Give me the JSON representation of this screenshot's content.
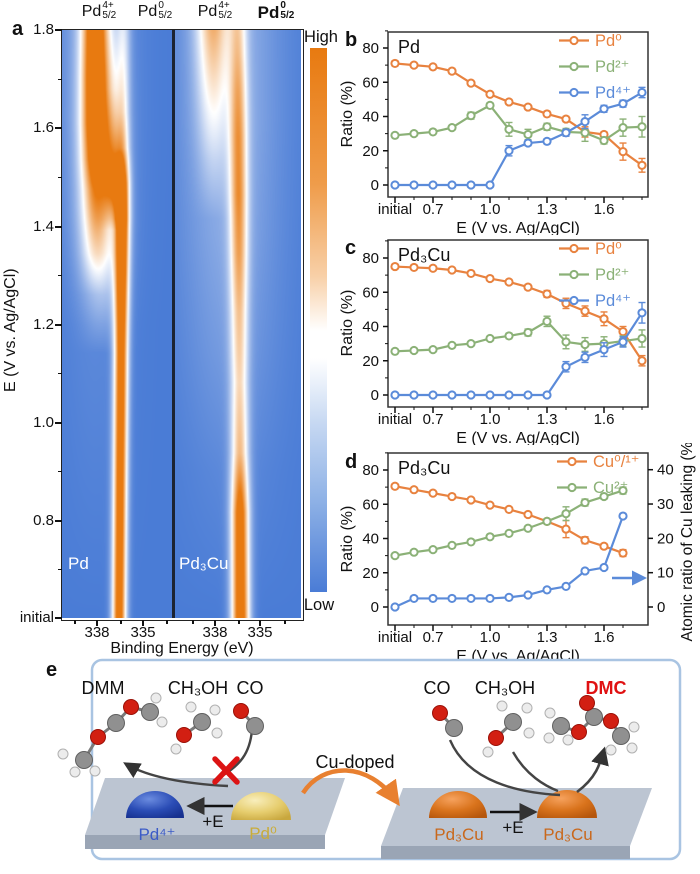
{
  "panel_a": {
    "label": "a",
    "top_labels": [
      {
        "base": "Pd",
        "sup": "4+",
        "sub": "5/2",
        "bold": false
      },
      {
        "base": "Pd",
        "sup": "0",
        "sub": "5/2",
        "bold": false
      },
      {
        "base": "Pd",
        "sup": "4+",
        "sub": "5/2",
        "bold": false
      },
      {
        "base": "Pd",
        "sup": "0",
        "sub": "5/2",
        "bold": true
      }
    ],
    "ylabel": "E (V vs. Ag/AgCl)",
    "yticks": [
      "1.8",
      "1.6",
      "1.4",
      "1.2",
      "1.0",
      "0.8",
      "initial"
    ],
    "xlabel": "Binding Energy (eV)",
    "xticks": [
      "338",
      "335",
      "338",
      "335"
    ],
    "colorbar_high": "High",
    "colorbar_low": "Low",
    "sample_labels": [
      "Pd",
      "Pd₃Cu"
    ],
    "colormap": {
      "low": "#4a7cd6",
      "mid": "#ffffff",
      "high": "#e87a10"
    },
    "heatmaps": [
      {
        "name": "Pd",
        "bands": [
          {
            "c0": 0.52,
            "c1": 0.56,
            "s": 0.045,
            "p": [
              [
                0,
                1.15
              ],
              [
                0.5,
                1.15
              ],
              [
                0.6,
                1.2
              ],
              [
                0.68,
                1.25
              ],
              [
                0.74,
                1.05
              ],
              [
                0.8,
                0.55
              ],
              [
                0.86,
                0.4
              ],
              [
                0.93,
                0.35
              ],
              [
                1,
                0.3
              ]
            ]
          },
          {
            "c0": 0.3,
            "c1": 0.3,
            "s": 0.085,
            "p": [
              [
                0,
                0
              ],
              [
                0.55,
                0
              ],
              [
                0.62,
                0.2
              ],
              [
                0.68,
                0.35
              ],
              [
                0.73,
                0.55
              ],
              [
                0.78,
                0.85
              ],
              [
                0.84,
                1.05
              ],
              [
                0.92,
                1.15
              ],
              [
                1,
                1.15
              ]
            ]
          },
          {
            "c0": 0.36,
            "c1": 0.36,
            "s": 0.13,
            "p": [
              [
                0,
                0
              ],
              [
                0.45,
                0
              ],
              [
                0.55,
                0.2
              ],
              [
                0.62,
                0.35
              ],
              [
                0.68,
                0.4
              ],
              [
                0.72,
                0.35
              ],
              [
                0.78,
                0.25
              ],
              [
                1,
                0
              ]
            ]
          },
          {
            "c0": 0.46,
            "c1": 0.46,
            "s": 0.06,
            "p": [
              [
                0,
                0
              ],
              [
                0.66,
                0
              ],
              [
                0.72,
                0.45
              ],
              [
                0.78,
                0.5
              ],
              [
                0.84,
                0.3
              ],
              [
                0.9,
                0.15
              ],
              [
                1,
                0.05
              ]
            ]
          },
          {
            "c0": 0.3,
            "c1": 0.3,
            "s": 0.22,
            "p": [
              [
                0,
                0
              ],
              [
                0.5,
                0.05
              ],
              [
                0.7,
                0.15
              ],
              [
                0.85,
                0.2
              ],
              [
                1,
                0.2
              ]
            ]
          }
        ]
      },
      {
        "name": "Pd₃Cu",
        "bands": [
          {
            "c0": 0.52,
            "c1": 0.5,
            "s": 0.05,
            "p": [
              [
                0,
                1.2
              ],
              [
                0.18,
                1.1
              ],
              [
                0.28,
                0.7
              ],
              [
                0.4,
                0.55
              ],
              [
                0.52,
                0.6
              ],
              [
                0.62,
                0.7
              ],
              [
                0.72,
                0.75
              ],
              [
                0.82,
                0.7
              ],
              [
                0.9,
                0.6
              ],
              [
                0.96,
                0.5
              ],
              [
                1,
                0.45
              ]
            ]
          },
          {
            "c0": 0.3,
            "c1": 0.3,
            "s": 0.09,
            "p": [
              [
                0,
                0
              ],
              [
                0.68,
                0
              ],
              [
                0.78,
                0.15
              ],
              [
                0.86,
                0.3
              ],
              [
                0.93,
                0.45
              ],
              [
                1,
                0.6
              ]
            ]
          },
          {
            "c0": 0.45,
            "c1": 0.42,
            "s": 0.28,
            "p": [
              [
                0,
                0
              ],
              [
                0.25,
                0.05
              ],
              [
                0.45,
                0.12
              ],
              [
                0.65,
                0.18
              ],
              [
                0.85,
                0.22
              ],
              [
                1,
                0.22
              ]
            ]
          }
        ]
      }
    ]
  },
  "chart_data": [
    {
      "id": "b",
      "type": "line",
      "panel_label": "b",
      "title": "Pd",
      "x_categories": [
        "initial",
        "0.6",
        "0.7",
        "0.8",
        "0.9",
        "1.0",
        "1.1",
        "1.2",
        "1.3",
        "1.4",
        "1.5",
        "1.6",
        "1.7",
        "1.8"
      ],
      "xtick_labels": [
        "initial",
        "0.7",
        "1.0",
        "1.3",
        "1.6"
      ],
      "xtick_indices": [
        0,
        2,
        5,
        8,
        11
      ],
      "xlabel": "E (V vs. Ag/AgCl)",
      "ylabel": "Ratio (%)",
      "ylim": [
        0,
        80
      ],
      "yticks": [
        0,
        20,
        40,
        60,
        80
      ],
      "series": [
        {
          "name": "Pd⁰",
          "color": "#E8823F",
          "values": [
            71,
            70,
            69,
            66.5,
            59.5,
            53,
            48.5,
            45.5,
            41.5,
            38.5,
            31,
            29.5,
            19.5,
            11.5
          ],
          "err": [
            1.5,
            0,
            0,
            1.5,
            0,
            0,
            0,
            0,
            1.5,
            1.5,
            3,
            1.5,
            5,
            4
          ]
        },
        {
          "name": "Pd²⁺",
          "color": "#8BB177",
          "values": [
            29,
            30,
            31,
            33.5,
            40.5,
            46.5,
            32.5,
            29.5,
            34,
            31,
            30.5,
            26,
            33.5,
            34
          ],
          "err": [
            0,
            0,
            0,
            0,
            2,
            1.5,
            4,
            3,
            2,
            2,
            5,
            2,
            5,
            6
          ]
        },
        {
          "name": "Pd⁴⁺",
          "color": "#5B8BD9",
          "values": [
            0,
            0,
            0,
            0,
            0,
            0,
            20,
            24.5,
            25.5,
            30.5,
            37,
            44.5,
            47.5,
            54
          ],
          "err": [
            0,
            0,
            0,
            0,
            0,
            0,
            3,
            1.5,
            1.5,
            2,
            4,
            2,
            2,
            3
          ]
        }
      ]
    },
    {
      "id": "c",
      "type": "line",
      "panel_label": "c",
      "title": "Pd₃Cu",
      "x_categories": [
        "initial",
        "0.6",
        "0.7",
        "0.8",
        "0.9",
        "1.0",
        "1.1",
        "1.2",
        "1.3",
        "1.4",
        "1.5",
        "1.6",
        "1.7",
        "1.8"
      ],
      "xtick_labels": [
        "initial",
        "0.7",
        "1.0",
        "1.3",
        "1.6"
      ],
      "xtick_indices": [
        0,
        2,
        5,
        8,
        11
      ],
      "xlabel": "E (V vs. Ag/AgCl)",
      "ylabel": "Ratio (%)",
      "ylim": [
        0,
        80
      ],
      "yticks": [
        0,
        20,
        40,
        60,
        80
      ],
      "series": [
        {
          "name": "Pd⁰",
          "color": "#E8823F",
          "values": [
            75,
            74.5,
            74,
            73,
            71,
            68,
            66,
            63,
            59,
            53.5,
            49,
            44.5,
            37,
            20
          ],
          "err": [
            1,
            0,
            0,
            0,
            0,
            1,
            1,
            1.5,
            2,
            3,
            3,
            4,
            3,
            3
          ]
        },
        {
          "name": "Pd²⁺",
          "color": "#8BB177",
          "values": [
            25.5,
            26,
            26.5,
            29,
            30,
            33,
            34.5,
            36.5,
            43,
            31,
            29.5,
            30,
            31.5,
            33
          ],
          "err": [
            0,
            0,
            0,
            0,
            0,
            0,
            1.5,
            2,
            3,
            4,
            4,
            4,
            3,
            5
          ]
        },
        {
          "name": "Pd⁴⁺",
          "color": "#5B8BD9",
          "values": [
            0,
            0,
            0,
            0,
            0,
            0,
            0,
            0,
            0,
            16.5,
            22,
            26.5,
            31,
            48
          ],
          "err": [
            0,
            0,
            0,
            0,
            0,
            0,
            0,
            0,
            0,
            3,
            3,
            4,
            3,
            6
          ]
        }
      ]
    },
    {
      "id": "d",
      "type": "line",
      "panel_label": "d",
      "title": "Pd₃Cu",
      "x_categories": [
        "initial",
        "0.6",
        "0.7",
        "0.8",
        "0.9",
        "1.0",
        "1.1",
        "1.2",
        "1.3",
        "1.4",
        "1.5",
        "1.6",
        "1.7"
      ],
      "xtick_labels": [
        "initial",
        "0.7",
        "1.0",
        "1.3",
        "1.6"
      ],
      "xtick_indices": [
        0,
        2,
        5,
        8,
        11
      ],
      "xlabel": "E (V vs. Ag/AgCl)",
      "ylabel": "Ratio (%)",
      "ylabel_right": "Atomic ratio of Cu leaking (%)",
      "ylim": [
        0,
        80
      ],
      "yticks": [
        0,
        20,
        40,
        60,
        80
      ],
      "ylim_right": [
        0,
        40
      ],
      "yticks_right": [
        0,
        10,
        20,
        30,
        40
      ],
      "series": [
        {
          "name": "Cu⁰/¹⁺",
          "color": "#E8823F",
          "values": [
            70.5,
            68.5,
            66.5,
            64.5,
            62.5,
            59.5,
            57,
            54,
            50,
            45.5,
            39,
            35.5,
            31.5
          ],
          "err": [
            1.5,
            0,
            0,
            0,
            0,
            0,
            0,
            0,
            0,
            5,
            2,
            1.5,
            2
          ]
        },
        {
          "name": "Cu²⁺",
          "color": "#8BB177",
          "values": [
            30,
            32,
            33.5,
            36,
            38,
            41,
            43,
            46,
            50,
            54.5,
            61,
            64.5,
            68
          ],
          "err": [
            0,
            0,
            0,
            0,
            0,
            0,
            0,
            0,
            1.5,
            4,
            2,
            1.5,
            2
          ]
        },
        {
          "name": "Cu leaking",
          "color": "#5B8BD9",
          "axis": "right",
          "in_legend": false,
          "values": [
            0,
            2.5,
            2.5,
            2.5,
            2.5,
            2.5,
            2.8,
            3.5,
            5,
            6,
            10.5,
            11.5,
            26.5
          ],
          "err": [
            0,
            0,
            0,
            0,
            0,
            0,
            0,
            0,
            0,
            0,
            0,
            0,
            0
          ]
        }
      ]
    }
  ],
  "panel_e": {
    "label": "e",
    "left": {
      "molecules": [
        "DMM",
        "CH₃OH",
        "CO"
      ],
      "catalysts": [
        "Pd⁴⁺",
        "Pd⁰"
      ],
      "arrow": "+E"
    },
    "center_arrow": "Cu-doped",
    "right": {
      "molecules": [
        "CO",
        "CH₃OH",
        "DMC"
      ],
      "catalysts": [
        "Pd₃Cu",
        "Pd₃Cu"
      ],
      "arrow": "+E"
    },
    "colors": {
      "dmc": "#e01112",
      "pd4": "#3b5bc7",
      "pd0": "#c9ac3a",
      "pd3cu": "#c9681c",
      "cu_doped_arrow": "#e88030",
      "blocked_x": "#dc1414"
    }
  }
}
